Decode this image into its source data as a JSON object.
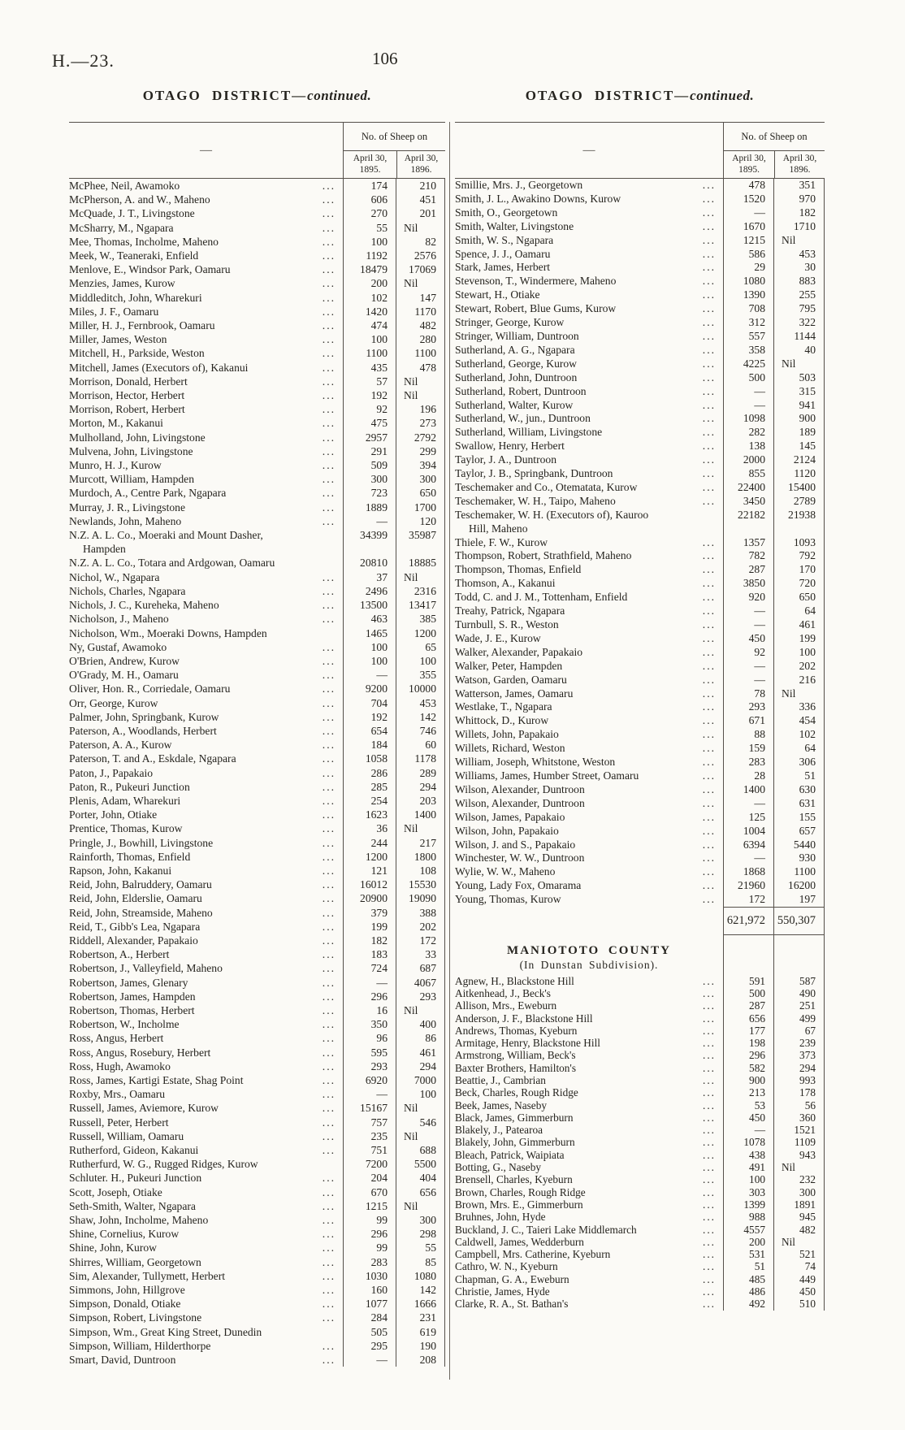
{
  "page": {
    "doc_ref": "H.—23.",
    "page_number": "106"
  },
  "left_table": {
    "title_caps": "OTAGO DISTRICT—",
    "title_cont": "continued.",
    "dash": "—",
    "sheep_header": "No. of Sheep on",
    "col_1895": "April 30, 1895.",
    "col_1896": "April 30, 1896.",
    "rows": [
      [
        "McPhee, Neil, Awamoko",
        "174",
        "210"
      ],
      [
        "McPherson, A. and W., Maheno",
        "606",
        "451"
      ],
      [
        "McQuade, J. T., Livingstone",
        "270",
        "201"
      ],
      [
        "McSharry, M., Ngapara",
        "55",
        "Nil"
      ],
      [
        "Mee, Thomas, Incholme, Maheno",
        "100",
        "82"
      ],
      [
        "Meek, W., Teaneraki, Enfield",
        "1192",
        "2576"
      ],
      [
        "Menlove, E., Windsor Park, Oamaru",
        "18479",
        "17069"
      ],
      [
        "Menzies, James, Kurow",
        "200",
        "Nil"
      ],
      [
        "Middleditch, John, Wharekuri",
        "102",
        "147"
      ],
      [
        "Miles, J. F., Oamaru",
        "1420",
        "1170"
      ],
      [
        "Miller, H. J., Fernbrook, Oamaru",
        "474",
        "482"
      ],
      [
        "Miller, James, Weston",
        "100",
        "280"
      ],
      [
        "Mitchell, H., Parkside, Weston",
        "1100",
        "1100"
      ],
      [
        "Mitchell, James (Executors of), Kakanui",
        "435",
        "478"
      ],
      [
        "Morrison, Donald, Herbert",
        "57",
        "Nil"
      ],
      [
        "Morrison, Hector, Herbert",
        "192",
        "Nil"
      ],
      [
        "Morrison, Robert, Herbert",
        "92",
        "196"
      ],
      [
        "Morton, M., Kakanui",
        "475",
        "273"
      ],
      [
        "Mulholland, John, Livingstone",
        "2957",
        "2792"
      ],
      [
        "Mulvena, John, Livingstone",
        "291",
        "299"
      ],
      [
        "Munro, H. J., Kurow",
        "509",
        "394"
      ],
      [
        "Murcott, William, Hampden",
        "300",
        "300"
      ],
      [
        "Murdoch, A., Centre Park, Ngapara",
        "723",
        "650"
      ],
      [
        "Murray, J. R., Livingstone",
        "1889",
        "1700"
      ],
      [
        "Newlands, John, Maheno",
        "—",
        "120"
      ],
      [
        "N.Z. A. L. Co., Moeraki and Mount Dasher,\nHampden",
        "34399",
        "35987",
        1
      ],
      [
        "N.Z. A. L. Co., Totara and Ardgowan, Oamaru",
        "20810",
        "18885",
        1
      ],
      [
        "Nichol, W., Ngapara",
        "37",
        "Nil"
      ],
      [
        "Nichols, Charles, Ngapara",
        "2496",
        "2316"
      ],
      [
        "Nichols, J. C., Kureheka, Maheno",
        "13500",
        "13417"
      ],
      [
        "Nicholson, J., Maheno",
        "463",
        "385"
      ],
      [
        "Nicholson, Wm., Moeraki Downs, Hampden",
        "1465",
        "1200",
        1
      ],
      [
        "Ny, Gustaf, Awamoko",
        "100",
        "65"
      ],
      [
        "O'Brien, Andrew, Kurow",
        "100",
        "100"
      ],
      [
        "O'Grady, M. H., Oamaru",
        "—",
        "355"
      ],
      [
        "Oliver, Hon. R., Corriedale, Oamaru",
        "9200",
        "10000"
      ],
      [
        "Orr, George, Kurow",
        "704",
        "453"
      ],
      [
        "Palmer, John, Springbank, Kurow",
        "192",
        "142"
      ],
      [
        "Paterson, A., Woodlands, Herbert",
        "654",
        "746"
      ],
      [
        "Paterson, A. A., Kurow",
        "184",
        "60"
      ],
      [
        "Paterson, T. and A., Eskdale, Ngapara",
        "1058",
        "1178"
      ],
      [
        "Paton, J., Papakaio",
        "286",
        "289"
      ],
      [
        "Paton, R., Pukeuri Junction",
        "285",
        "294"
      ],
      [
        "Plenis, Adam, Wharekuri",
        "254",
        "203"
      ],
      [
        "Porter, John, Otiake",
        "1623",
        "1400"
      ],
      [
        "Prentice, Thomas, Kurow",
        "36",
        "Nil"
      ],
      [
        "Pringle, J., Bowhill, Livingstone",
        "244",
        "217"
      ],
      [
        "Rainforth, Thomas, Enfield",
        "1200",
        "1800"
      ],
      [
        "Rapson, John, Kakanui",
        "121",
        "108"
      ],
      [
        "Reid, John, Balruddery, Oamaru",
        "16012",
        "15530"
      ],
      [
        "Reid, John, Elderslie, Oamaru",
        "20900",
        "19090"
      ],
      [
        "Reid, John, Streamside, Maheno",
        "379",
        "388"
      ],
      [
        "Reid, T., Gibb's Lea, Ngapara",
        "199",
        "202"
      ],
      [
        "Riddell, Alexander, Papakaio",
        "182",
        "172"
      ],
      [
        "Robertson, A., Herbert",
        "183",
        "33"
      ],
      [
        "Robertson, J., Valleyfield, Maheno",
        "724",
        "687"
      ],
      [
        "Robertson, James, Glenary",
        "—",
        "4067"
      ],
      [
        "Robertson, James, Hampden",
        "296",
        "293"
      ],
      [
        "Robertson, Thomas, Herbert",
        "16",
        "Nil"
      ],
      [
        "Robertson, W., Incholme",
        "350",
        "400"
      ],
      [
        "Ross, Angus, Herbert",
        "96",
        "86"
      ],
      [
        "Ross, Angus, Rosebury, Herbert",
        "595",
        "461"
      ],
      [
        "Ross, Hugh, Awamoko",
        "293",
        "294"
      ],
      [
        "Ross, James, Kartigi Estate, Shag Point",
        "6920",
        "7000"
      ],
      [
        "Roxby, Mrs., Oamaru",
        "—",
        "100"
      ],
      [
        "Russell, James, Aviemore, Kurow",
        "15167",
        "Nil"
      ],
      [
        "Russell, Peter, Herbert",
        "757",
        "546"
      ],
      [
        "Russell, William, Oamaru",
        "235",
        "Nil"
      ],
      [
        "Rutherford, Gideon, Kakanui",
        "751",
        "688"
      ],
      [
        "Rutherfurd, W. G., Rugged Ridges, Kurow",
        "7200",
        "5500",
        1
      ],
      [
        "Schluter. H., Pukeuri Junction",
        "204",
        "404"
      ],
      [
        "Scott, Joseph, Otiake",
        "670",
        "656"
      ],
      [
        "Seth-Smith, Walter, Ngapara",
        "1215",
        "Nil"
      ],
      [
        "Shaw, John, Incholme, Maheno",
        "99",
        "300"
      ],
      [
        "Shine, Cornelius, Kurow",
        "296",
        "298"
      ],
      [
        "Shine, John, Kurow",
        "99",
        "55"
      ],
      [
        "Shirres, William, Georgetown",
        "283",
        "85"
      ],
      [
        "Sim, Alexander, Tullymett, Herbert",
        "1030",
        "1080"
      ],
      [
        "Simmons, John, Hillgrove",
        "160",
        "142"
      ],
      [
        "Simpson, Donald, Otiake",
        "1077",
        "1666"
      ],
      [
        "Simpson, Robert, Livingstone",
        "284",
        "231"
      ],
      [
        "Simpson, Wm., Great King Street, Dunedin",
        "505",
        "619",
        1
      ],
      [
        "Simpson, William, Hilderthorpe",
        "295",
        "190"
      ],
      [
        "Smart, David, Duntroon",
        "—",
        "208"
      ]
    ]
  },
  "right_table": {
    "title_caps": "OTAGO DISTRICT—",
    "title_cont": "continued.",
    "dash": "—",
    "sheep_header": "No. of Sheep on",
    "col_1895": "April 30, 1895.",
    "col_1896": "April 30, 1896.",
    "rows": [
      [
        "Smillie, Mrs. J., Georgetown",
        "478",
        "351"
      ],
      [
        "Smith, J. L., Awakino Downs, Kurow",
        "1520",
        "970"
      ],
      [
        "Smith, O., Georgetown",
        "—",
        "182"
      ],
      [
        "Smith, Walter, Livingstone",
        "1670",
        "1710"
      ],
      [
        "Smith, W. S., Ngapara",
        "1215",
        "Nil"
      ],
      [
        "Spence, J. J., Oamaru",
        "586",
        "453"
      ],
      [
        "Stark, James, Herbert",
        "29",
        "30"
      ],
      [
        "Stevenson, T., Windermere, Maheno",
        "1080",
        "883"
      ],
      [
        "Stewart, H., Otiake",
        "1390",
        "255"
      ],
      [
        "Stewart, Robert, Blue Gums, Kurow",
        "708",
        "795"
      ],
      [
        "Stringer, George, Kurow",
        "312",
        "322"
      ],
      [
        "Stringer, William, Duntroon",
        "557",
        "1144"
      ],
      [
        "Sutherland, A. G., Ngapara",
        "358",
        "40"
      ],
      [
        "Sutherland, George, Kurow",
        "4225",
        "Nil"
      ],
      [
        "Sutherland, John, Duntroon",
        "500",
        "503"
      ],
      [
        "Sutherland, Robert, Duntroon",
        "—",
        "315"
      ],
      [
        "Sutherland, Walter, Kurow",
        "—",
        "941"
      ],
      [
        "Sutherland, W., jun., Duntroon",
        "1098",
        "900"
      ],
      [
        "Sutherland, William, Livingstone",
        "282",
        "189"
      ],
      [
        "Swallow, Henry, Herbert",
        "138",
        "145"
      ],
      [
        "Taylor, J. A., Duntroon",
        "2000",
        "2124"
      ],
      [
        "Taylor, J. B., Springbank, Duntroon",
        "855",
        "1120"
      ],
      [
        "Teschemaker and Co., Otematata, Kurow",
        "22400",
        "15400"
      ],
      [
        "Teschemaker, W. H., Taipo, Maheno",
        "3450",
        "2789"
      ],
      [
        "Teschemaker, W. H. (Executors of), Kauroo\nHill, Maheno",
        "22182",
        "21938",
        1
      ],
      [
        "Thiele, F. W., Kurow",
        "1357",
        "1093"
      ],
      [
        "Thompson, Robert, Strathfield, Maheno",
        "782",
        "792"
      ],
      [
        "Thompson, Thomas, Enfield",
        "287",
        "170"
      ],
      [
        "Thomson, A., Kakanui",
        "3850",
        "720"
      ],
      [
        "Todd, C. and J. M., Tottenham, Enfield",
        "920",
        "650"
      ],
      [
        "Treahy, Patrick, Ngapara",
        "—",
        "64"
      ],
      [
        "Turnbull, S. R., Weston",
        "—",
        "461"
      ],
      [
        "Wade, J. E., Kurow",
        "450",
        "199"
      ],
      [
        "Walker, Alexander, Papakaio",
        "92",
        "100"
      ],
      [
        "Walker, Peter, Hampden",
        "—",
        "202"
      ],
      [
        "Watson, Garden, Oamaru",
        "—",
        "216"
      ],
      [
        "Watterson, James, Oamaru",
        "78",
        "Nil"
      ],
      [
        "Westlake, T., Ngapara",
        "293",
        "336"
      ],
      [
        "Whittock, D., Kurow",
        "671",
        "454"
      ],
      [
        "Willets, John, Papakaio",
        "88",
        "102"
      ],
      [
        "Willets, Richard, Weston",
        "159",
        "64"
      ],
      [
        "William, Joseph, Whitstone, Weston",
        "283",
        "306"
      ],
      [
        "Williams, James, Humber Street, Oamaru",
        "28",
        "51"
      ],
      [
        "Wilson, Alexander, Duntroon",
        "1400",
        "630"
      ],
      [
        "Wilson, Alexander, Duntroon",
        "—",
        "631"
      ],
      [
        "Wilson, James, Papakaio",
        "125",
        "155"
      ],
      [
        "Wilson, John, Papakaio",
        "1004",
        "657"
      ],
      [
        "Wilson, J. and S., Papakaio",
        "6394",
        "5440"
      ],
      [
        "Winchester, W. W., Duntroon",
        "—",
        "930"
      ],
      [
        "Wylie, W. W., Maheno",
        "1868",
        "1100"
      ],
      [
        "Young, Lady Fox, Omarama",
        "21960",
        "16200"
      ],
      [
        "Young, Thomas, Kurow",
        "172",
        "197"
      ]
    ],
    "totals": [
      "621,972",
      "550,307"
    ],
    "county": {
      "title": "MANIOTOTO COUNTY",
      "subtitle": "(In Dunstan Subdivision).",
      "rows": [
        [
          "Agnew, H., Blackstone Hill",
          "591",
          "587"
        ],
        [
          "Aitkenhead, J., Beck's",
          "500",
          "490"
        ],
        [
          "Allison, Mrs., Eweburn",
          "287",
          "251"
        ],
        [
          "Anderson, J. F., Blackstone Hill",
          "656",
          "499"
        ],
        [
          "Andrews, Thomas, Kyeburn",
          "177",
          "67"
        ],
        [
          "Armitage, Henry, Blackstone Hill",
          "198",
          "239"
        ],
        [
          "Armstrong, William, Beck's",
          "296",
          "373"
        ],
        [
          "Baxter Brothers, Hamilton's",
          "582",
          "294"
        ],
        [
          "Beattie, J., Cambrian",
          "900",
          "993"
        ],
        [
          "Beck, Charles, Rough Ridge",
          "213",
          "178"
        ],
        [
          "Beek, James, Naseby",
          "53",
          "56"
        ],
        [
          "Black, James, Gimmerburn",
          "450",
          "360"
        ],
        [
          "Blakely, J., Patearoa",
          "—",
          "1521"
        ],
        [
          "Blakely, John, Gimmerburn",
          "1078",
          "1109"
        ],
        [
          "Bleach, Patrick, Waipiata",
          "438",
          "943"
        ],
        [
          "Botting, G., Naseby",
          "491",
          "Nil"
        ],
        [
          "Brensell, Charles, Kyeburn",
          "100",
          "232"
        ],
        [
          "Brown, Charles, Rough Ridge",
          "303",
          "300"
        ],
        [
          "Brown, Mrs. E., Gimmerburn",
          "1399",
          "1891"
        ],
        [
          "Bruhnes, John, Hyde",
          "988",
          "945"
        ],
        [
          "Buckland, J. C., Taieri Lake Middlemarch",
          "4557",
          "482"
        ],
        [
          "Caldwell, James, Wedderburn",
          "200",
          "Nil"
        ],
        [
          "Campbell, Mrs. Catherine, Kyeburn",
          "531",
          "521"
        ],
        [
          "Cathro, W. N., Kyeburn",
          "51",
          "74"
        ],
        [
          "Chapman, G. A., Eweburn",
          "485",
          "449"
        ],
        [
          "Christie, James, Hyde",
          "486",
          "450"
        ],
        [
          "Clarke, R. A., St. Bathan's",
          "492",
          "510"
        ]
      ]
    }
  }
}
